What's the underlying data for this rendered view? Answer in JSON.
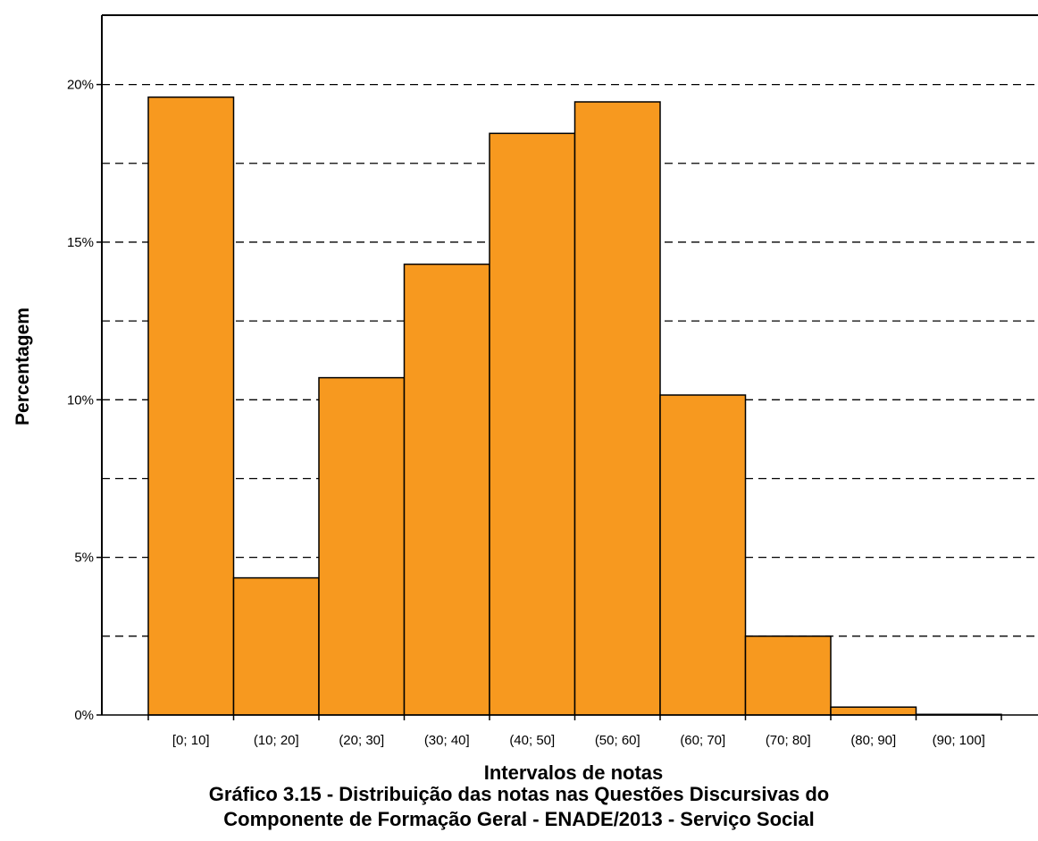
{
  "caption": {
    "line1": "Gráfico 3.15 - Distribuição das notas nas Questões Discursivas do",
    "line2": "Componente de Formação Geral - ENADE/2013 - Serviço Social"
  },
  "colors": {
    "bar_fill": "#F7991F",
    "bar_stroke": "#000000",
    "grid": "#000000",
    "axis": "#000000"
  },
  "chart_data": {
    "type": "bar",
    "title": "",
    "xlabel": "Intervalos de notas",
    "ylabel": "Percentagem",
    "categories": [
      "[0; 10]",
      "(10; 20]",
      "(20; 30]",
      "(30; 40]",
      "(40; 50]",
      "(50; 60]",
      "(60; 70]",
      "(70; 80]",
      "(80; 90]",
      "(90; 100]"
    ],
    "values": [
      19.6,
      4.35,
      10.7,
      14.3,
      18.45,
      19.45,
      10.15,
      2.5,
      0.25,
      0.02
    ],
    "ylim": [
      0,
      22.2
    ],
    "yticks": [
      0,
      5,
      10,
      15,
      20
    ],
    "ytick_labels": [
      "0%",
      "5%",
      "10%",
      "15%",
      "20%"
    ],
    "gridlines": [
      2.5,
      5,
      7.5,
      10,
      12.5,
      15,
      17.5,
      20
    ],
    "grid": "horizontal dashed",
    "legend": "none"
  }
}
